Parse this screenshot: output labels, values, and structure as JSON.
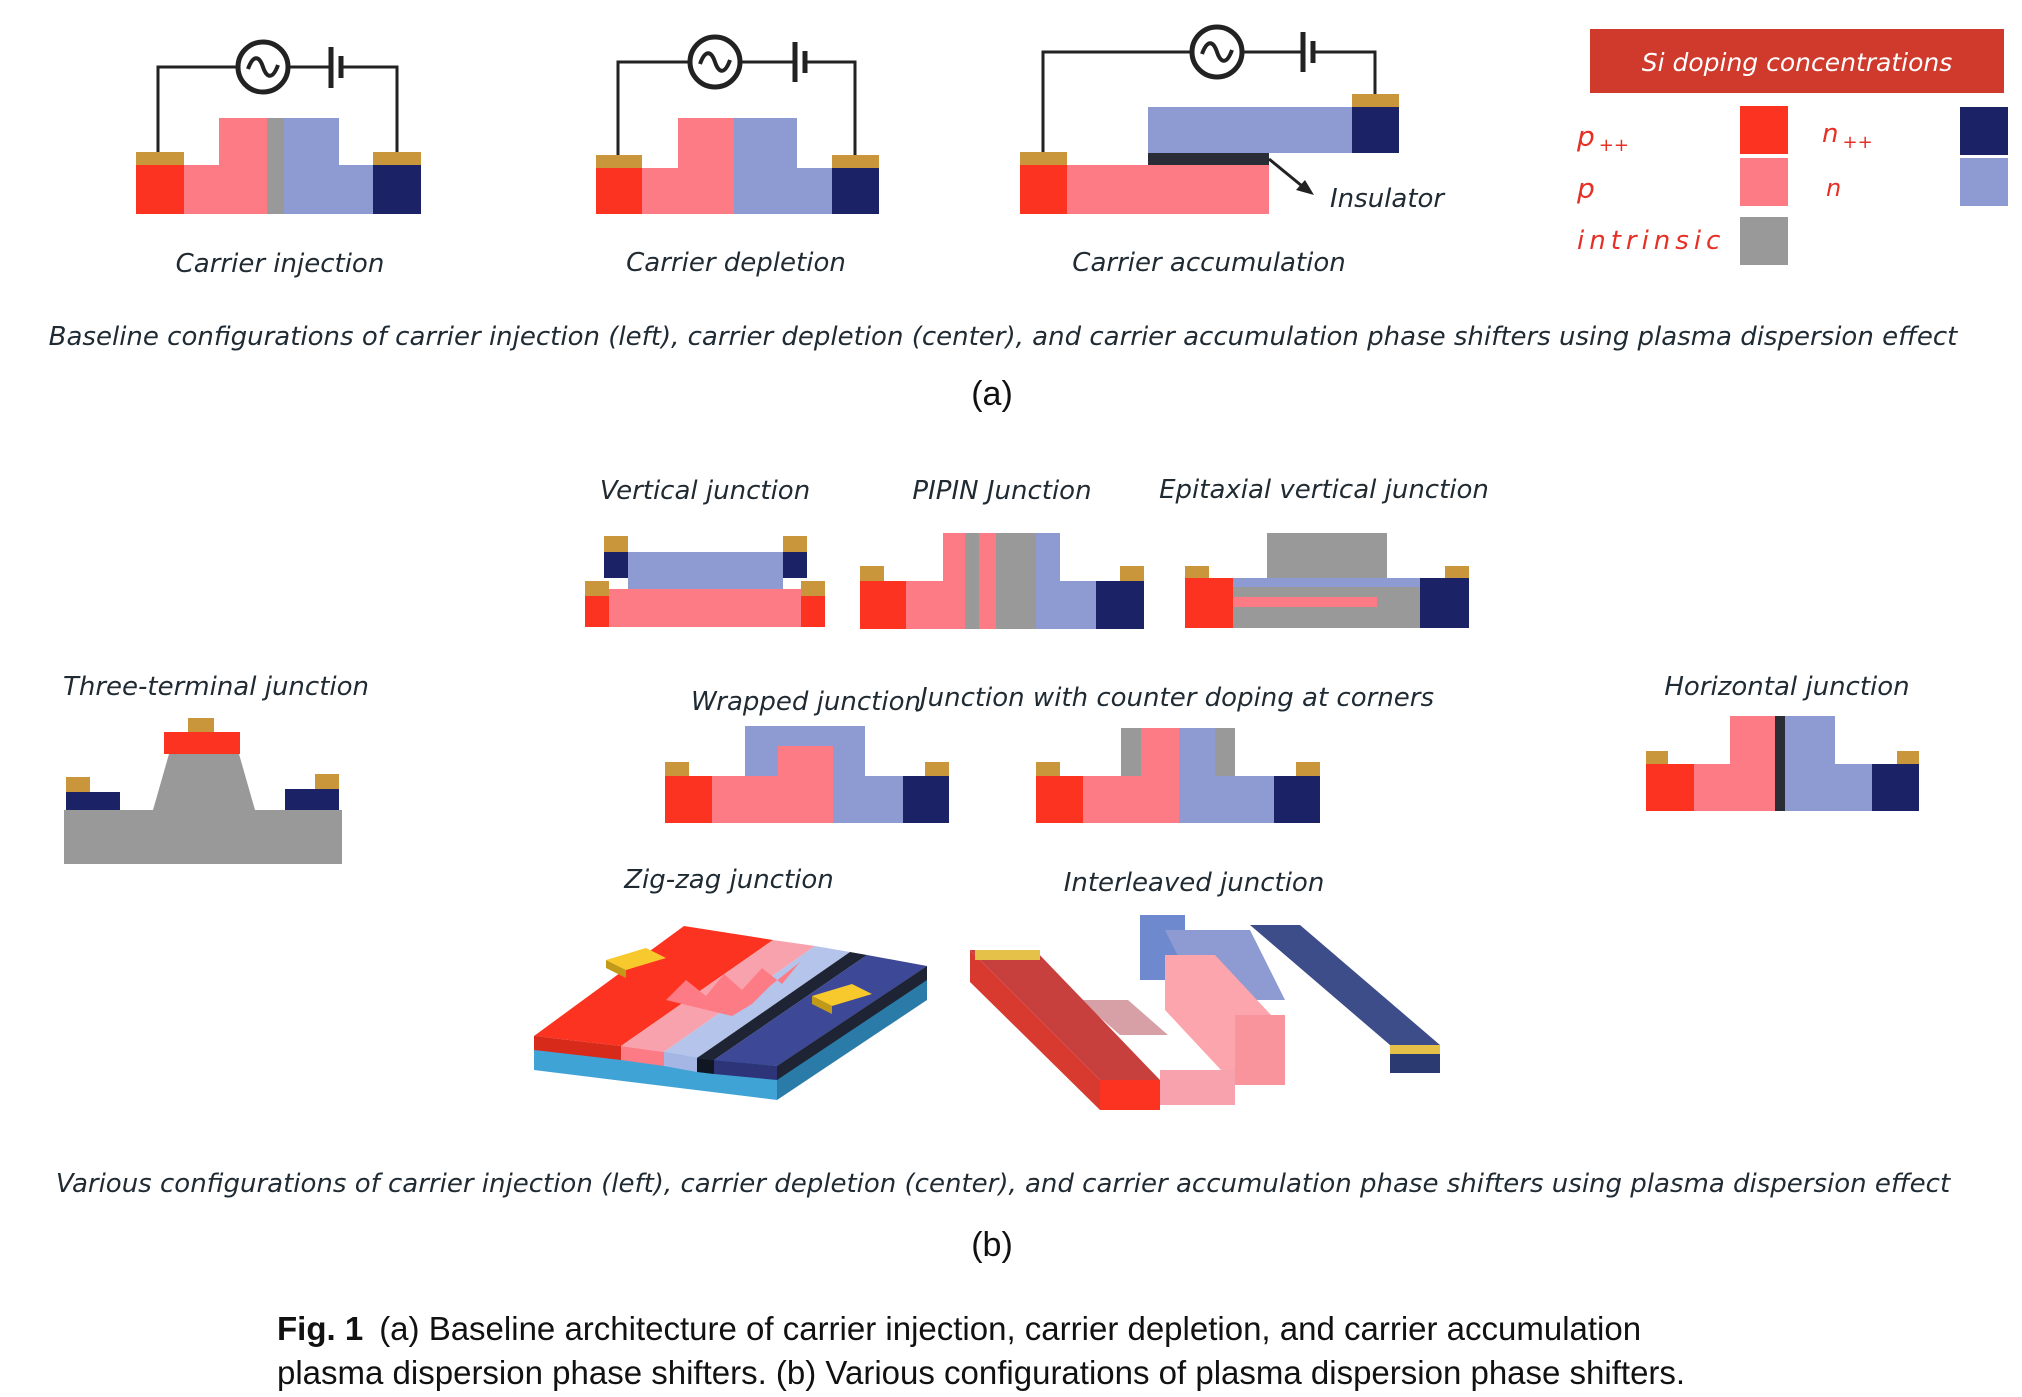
{
  "part_a": {
    "label_injection": "Carrier injection",
    "label_depletion": "Carrier depletion",
    "label_accumulation": "Carrier accumulation",
    "insulator_label": "Insulator",
    "caption": "Baseline configurations of carrier injection (left), carrier depletion (center), and carrier accumulation phase shifters using plasma dispersion effect",
    "panel_tag": "(a)"
  },
  "legend": {
    "title": "Si doping concentrations",
    "p_plus_plus": "p",
    "p_plus_plus_sup": "++",
    "p": "p",
    "intrinsic": "intrinsic",
    "n_plus_plus": "n",
    "n_plus_plus_sup": "++",
    "n": "n"
  },
  "part_b": {
    "vertical": "Vertical junction",
    "pipin": "PIPIN Junction",
    "epitaxial": "Epitaxial vertical junction",
    "three_terminal": "Three-terminal junction",
    "wrapped": "Wrapped junction",
    "counter_doping": "Junction with counter doping at corners",
    "horizontal": "Horizontal junction",
    "zigzag": "Zig-zag junction",
    "interleaved": "Interleaved junction",
    "caption": "Various configurations of carrier injection (left), carrier depletion (center), and carrier accumulation phase shifters using plasma dispersion effect",
    "panel_tag": "(b)"
  },
  "figure_caption": {
    "bold": "Fig. 1",
    "line1": "(a) Baseline architecture of carrier injection, carrier depletion, and carrier accumulation",
    "line2": "plasma dispersion phase shifters. (b) Various configurations of plasma dispersion phase shifters."
  },
  "colors": {
    "p_plus_plus": "#fc3320",
    "p": "#fd7b85",
    "intrinsic": "#999999",
    "n_plus_plus": "#1b2366",
    "n": "#8d9bd2",
    "contact": "#c9963c",
    "legend_header": "#cf3a2c",
    "insulator": "#2a2d36"
  }
}
